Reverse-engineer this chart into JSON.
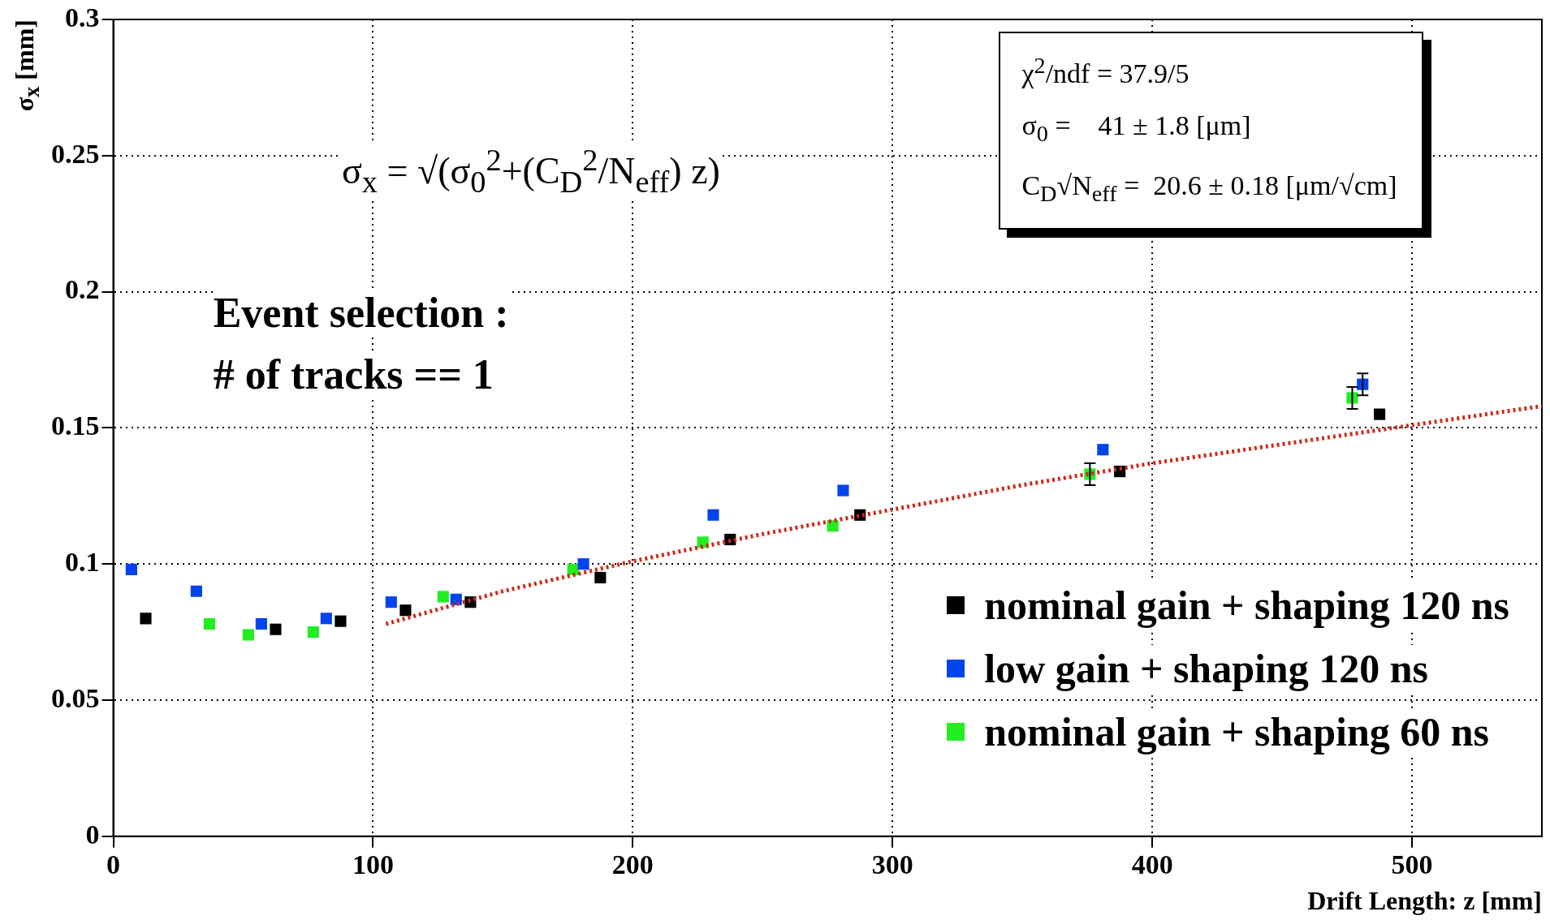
{
  "chart_data": {
    "type": "scatter",
    "xlabel": "Drift Length: z [mm]",
    "ylabel": "σ$_{x}$ [mm]",
    "xlim": [
      0,
      550
    ],
    "xticks": [
      0,
      100,
      200,
      300,
      400,
      500
    ],
    "ylim": [
      0,
      0.3
    ],
    "yticks": [
      0,
      0.05,
      0.1,
      0.15,
      0.2,
      0.25,
      0.3
    ],
    "grid": true,
    "legend": "bottom right",
    "marker": "square",
    "series": [
      {
        "name": "nominal gain + shaping 120 ns",
        "color": "#000000",
        "x": [
          12.5,
          62.5,
          87.5,
          112.5,
          137.5,
          187.5,
          237.5,
          287.5,
          387.5,
          487.5
        ],
        "values": [
          0.08,
          0.076,
          0.079,
          0.083,
          0.086,
          0.095,
          0.109,
          0.118,
          0.134,
          0.155
        ]
      },
      {
        "name": "low gain + shaping 120 ns",
        "color": "#0044ee",
        "x": [
          7,
          32,
          57,
          82,
          107,
          132,
          181,
          231,
          281,
          381,
          481
        ],
        "values": [
          0.098,
          0.09,
          0.078,
          0.08,
          0.086,
          0.087,
          0.1,
          0.118,
          0.127,
          0.142,
          0.166
        ],
        "errors": [
          null,
          null,
          null,
          null,
          null,
          null,
          null,
          null,
          null,
          null,
          0.004
        ]
      },
      {
        "name": "nominal gain + shaping 60 ns",
        "color": "#22ee22",
        "x": [
          37,
          52,
          77,
          127,
          177,
          227,
          277,
          376,
          477
        ],
        "values": [
          0.078,
          0.074,
          0.075,
          0.088,
          0.098,
          0.108,
          0.114,
          0.133,
          0.161
        ],
        "errors": [
          null,
          null,
          null,
          null,
          null,
          null,
          null,
          0.004,
          0.004
        ]
      },
      {
        "type": "line",
        "color": "#cc2a1a",
        "line_style": "dotted",
        "marker": "none",
        "x": [
          105,
          150,
          200,
          250,
          300,
          350,
          400,
          450,
          500,
          550
        ],
        "values": [
          0.078,
          0.09,
          0.101,
          0.111,
          0.12,
          0.129,
          0.137,
          0.144,
          0.151,
          0.158
        ]
      }
    ],
    "annotations": [
      "χ$^{2}$/ndf = 37.9/5",
      "σ$_{0}$ =    41 ± 1.8 [μm]",
      "C$_{D}$√N$_{eff}$ =  20.6 ± 0.18 [μm/√cm]",
      "σ$_{x}$ = √(σ$_{0}$$^{2}$+(C$_{D}$$^{2}$/N$_{eff}$) z)",
      "Event selection :",
      "# of tracks == 1"
    ]
  }
}
